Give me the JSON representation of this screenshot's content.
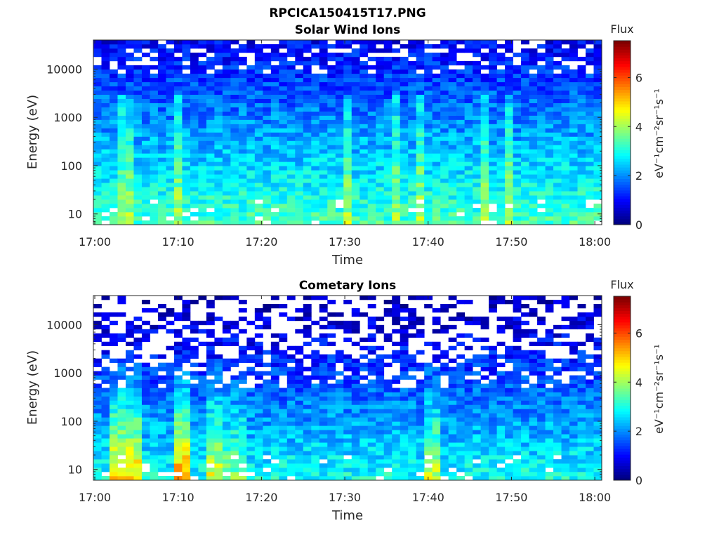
{
  "figure": {
    "title": "RPCICA150415T17.PNG"
  },
  "panels": [
    {
      "title": "Solar Wind Ions",
      "xlabel": "Time",
      "ylabel": "Energy (eV)",
      "colorbar_title": "Flux",
      "colorbar_label": "eV⁻¹cm⁻²sr⁻¹s⁻¹"
    },
    {
      "title": "Cometary Ions",
      "xlabel": "Time",
      "ylabel": "Energy (eV)",
      "colorbar_title": "Flux",
      "colorbar_label": "eV⁻¹cm⁻²sr⁻¹s⁻¹"
    }
  ],
  "chart_data": [
    {
      "type": "heatmap",
      "title": "Solar Wind Ions",
      "xlabel": "Time",
      "ylabel": "Energy (eV)",
      "x_ticks": [
        "17:00",
        "17:10",
        "17:20",
        "17:30",
        "17:40",
        "17:50",
        "18:00"
      ],
      "y_ticks": [
        "10",
        "100",
        "1000",
        "10000"
      ],
      "y_scale": "log",
      "ylim": [
        6,
        40000
      ],
      "colorbar": {
        "title": "Flux",
        "ticks": [
          "0",
          "2",
          "4",
          "6"
        ],
        "range": [
          0,
          7.5
        ],
        "colormap": "jet"
      },
      "summary": "Flux highest (~3-4) at low energies (10-300 eV), decreasing to ~0-1 above 5000 eV; vertical enhanced streaks near 17:03-17:05, 17:10, 17:31, 17:37, 17:40, 17:48"
    },
    {
      "type": "heatmap",
      "title": "Cometary Ions",
      "xlabel": "Time",
      "ylabel": "Energy (eV)",
      "x_ticks": [
        "17:00",
        "17:10",
        "17:20",
        "17:30",
        "17:40",
        "17:50",
        "18:00"
      ],
      "y_ticks": [
        "10",
        "100",
        "1000",
        "10000"
      ],
      "y_scale": "log",
      "ylim": [
        6,
        40000
      ],
      "colorbar": {
        "title": "Flux",
        "ticks": [
          "0",
          "2",
          "4",
          "6"
        ],
        "range": [
          0,
          7.5
        ],
        "colormap": "jet"
      },
      "summary": "Strong low-energy flux (~4-5) in bursts at 17:02-17:05, 17:10-17:11 (peak ~5), 17:14, 17:41; sparse/blank above ~3000 eV"
    }
  ]
}
